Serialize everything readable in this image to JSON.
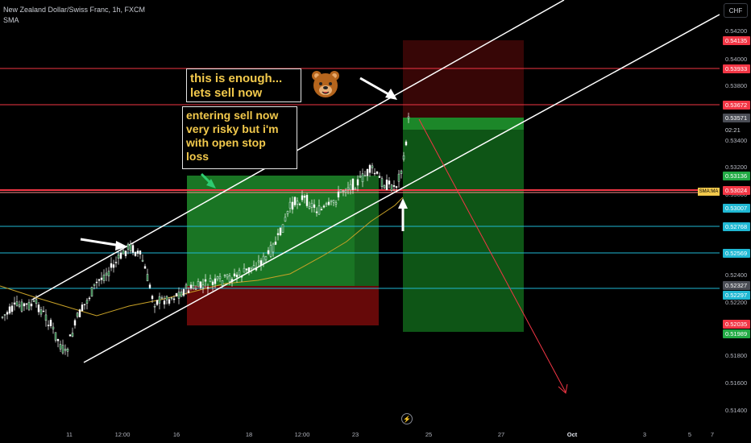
{
  "header": {
    "symbol_line": "New Zealand Dollar/Swiss Franc, 1h, FXCM",
    "indicator_line": "SMA"
  },
  "currency": "CHF",
  "annotations": {
    "note1": [
      "this is enough...",
      "lets sell now"
    ],
    "note2": [
      "entering sell now",
      "very risky but i'm",
      "with open stop",
      "loss"
    ]
  },
  "sma_tag": "SMA:MA",
  "price_ticks": [
    "0.54200",
    "0.54000",
    "0.53800",
    "0.53400",
    "0.53200",
    "0.53000",
    "0.52400",
    "0.52200",
    "0.51800",
    "0.51600",
    "0.51400"
  ],
  "price_tags": [
    {
      "label": "0.54135",
      "color": "#f23645"
    },
    {
      "label": "0.53933",
      "color": "#f23645"
    },
    {
      "label": "0.53672",
      "color": "#f23645"
    },
    {
      "label": "0.53571",
      "color": "#4a4d55"
    },
    {
      "label": "02:21",
      "color": "#000000"
    },
    {
      "label": "0.53136",
      "color": "#22ab45"
    },
    {
      "label": "0.53024",
      "color": "#f23645"
    },
    {
      "label": "0.53007",
      "color": "#1fb8d3"
    },
    {
      "label": "0.52768",
      "color": "#1fb8d3"
    },
    {
      "label": "0.52569",
      "color": "#1fb8d3"
    },
    {
      "label": "0.52327",
      "color": "#4a4d55"
    },
    {
      "label": "0.52297",
      "color": "#1fb8d3"
    },
    {
      "label": "0.52035",
      "color": "#f23645"
    },
    {
      "label": "0.51989",
      "color": "#22ab45"
    }
  ],
  "time_ticks": [
    {
      "label": "11",
      "bold": false
    },
    {
      "label": "12:00",
      "bold": false
    },
    {
      "label": "16",
      "bold": false
    },
    {
      "label": "18",
      "bold": false
    },
    {
      "label": "12:00",
      "bold": false
    },
    {
      "label": "23",
      "bold": false
    },
    {
      "label": "25",
      "bold": false
    },
    {
      "label": "27",
      "bold": false
    },
    {
      "label": "Oct",
      "bold": true
    },
    {
      "label": "3",
      "bold": false
    },
    {
      "label": "5",
      "bold": false
    },
    {
      "label": "7",
      "bold": false
    }
  ],
  "colors": {
    "red_level": "#f23645",
    "cyan_level": "#1fb8d3",
    "candle": "#ffffff",
    "sma": "#c9a227"
  },
  "icons": [
    "bear-face-icon",
    "flash-icon"
  ]
}
